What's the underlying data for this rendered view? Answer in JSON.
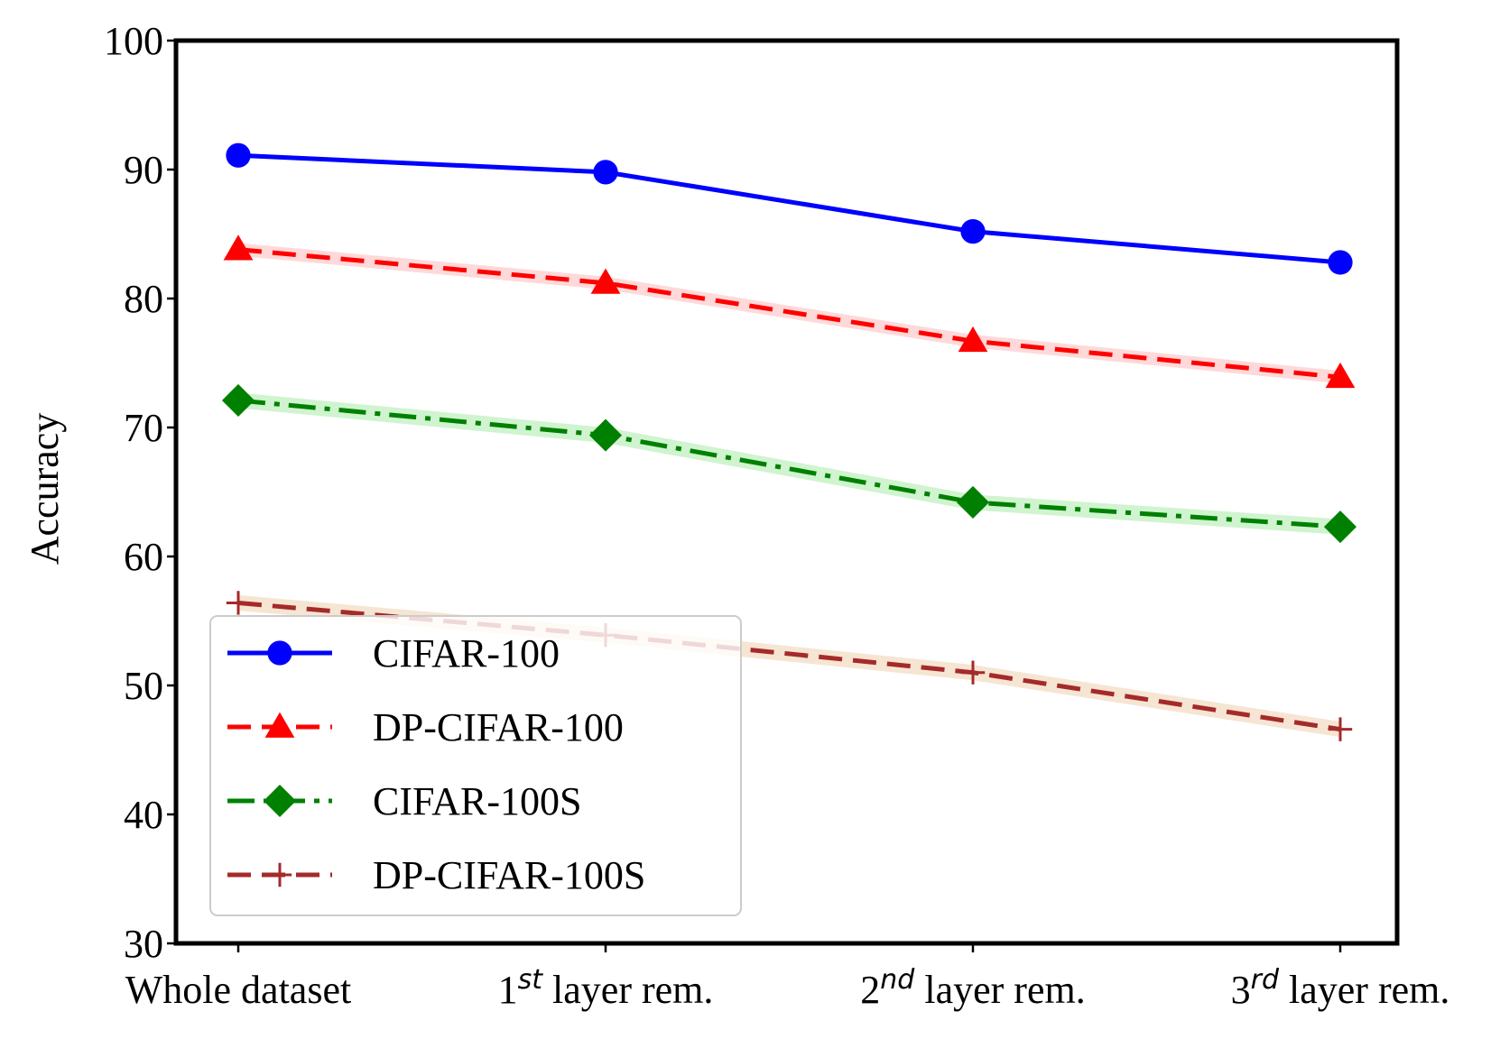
{
  "chart_data": {
    "type": "line",
    "title": "",
    "xlabel": "",
    "ylabel": "Accuracy",
    "ylim": [
      30,
      100
    ],
    "yticks": [
      30,
      40,
      50,
      60,
      70,
      80,
      90,
      100
    ],
    "categories": [
      {
        "base": "Whole dataset",
        "sup": "",
        "rest": ""
      },
      {
        "base": "1",
        "sup": "st",
        "rest": " layer rem."
      },
      {
        "base": "2",
        "sup": "nd",
        "rest": " layer rem."
      },
      {
        "base": "3",
        "sup": "rd",
        "rest": " layer rem."
      }
    ],
    "legend_position": "lower-left",
    "series": [
      {
        "name": "CIFAR-100",
        "values": [
          91.1,
          89.8,
          85.2,
          82.8
        ],
        "color": "#0000ff",
        "dash": "solid",
        "marker": "circle",
        "band": 0.0,
        "band_color": "#aaaaff"
      },
      {
        "name": "DP-CIFAR-100",
        "values": [
          83.8,
          81.2,
          76.7,
          73.9
        ],
        "color": "#ff0000",
        "dash": "dashed",
        "marker": "triangle",
        "band": 0.5,
        "band_color": "#ffcccc"
      },
      {
        "name": "CIFAR-100S",
        "values": [
          72.1,
          69.4,
          64.2,
          62.3
        ],
        "color": "#008000",
        "dash": "dashdot",
        "marker": "diamond",
        "band": 0.6,
        "band_color": "#bff0bf"
      },
      {
        "name": "DP-CIFAR-100S",
        "values": [
          56.4,
          53.9,
          51.0,
          46.6
        ],
        "color": "#a52a2a",
        "dash": "dashed",
        "marker": "plus",
        "band": 0.6,
        "band_color": "#f3dcc4"
      }
    ]
  }
}
